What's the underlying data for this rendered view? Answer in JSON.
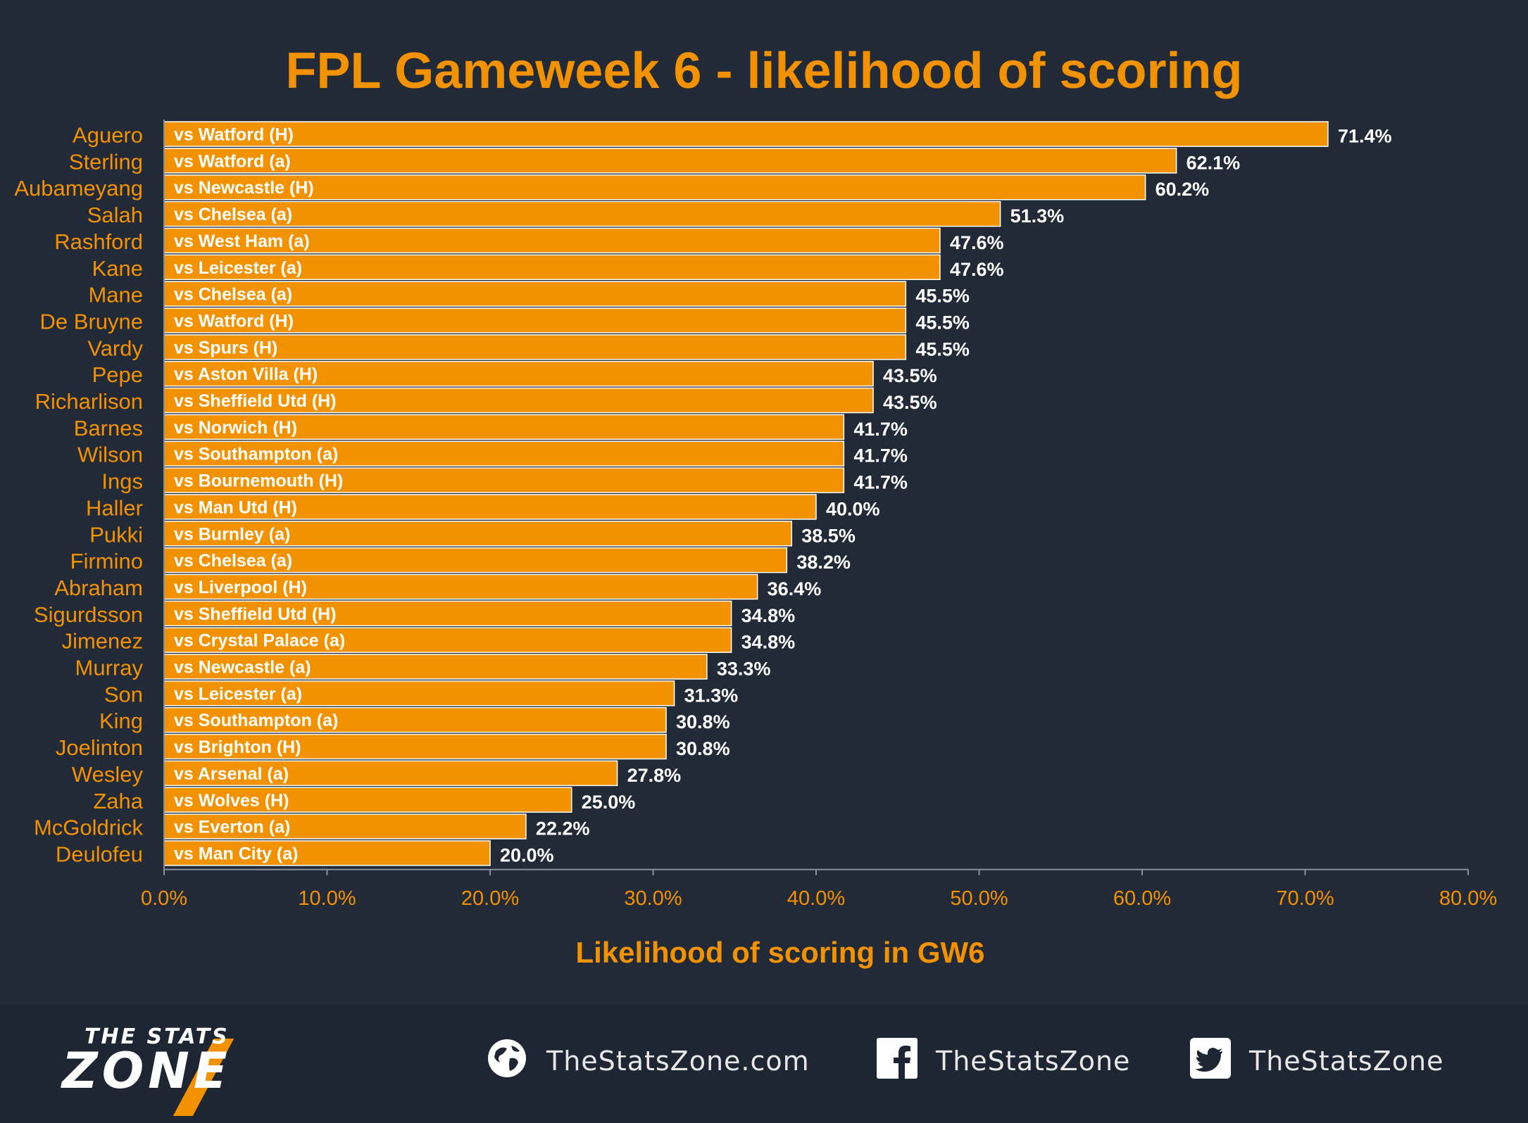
{
  "chart_data": {
    "type": "bar",
    "orientation": "horizontal",
    "title": "FPL Gameweek 6 - likelihood of scoring",
    "xlabel": "Likelihood of scoring in GW6",
    "ylabel": "",
    "xlim": [
      0,
      80
    ],
    "x_ticks": [
      "0.0%",
      "10.0%",
      "20.0%",
      "30.0%",
      "40.0%",
      "50.0%",
      "60.0%",
      "70.0%",
      "80.0%"
    ],
    "categories": [
      "Aguero",
      "Sterling",
      "Aubameyang",
      "Salah",
      "Rashford",
      "Kane",
      "Mane",
      "De Bruyne",
      "Vardy",
      "Pepe",
      "Richarlison",
      "Barnes",
      "Wilson",
      "Ings",
      "Haller",
      "Pukki",
      "Firmino",
      "Abraham",
      "Sigurdsson",
      "Jimenez",
      "Murray",
      "Son",
      "King",
      "Joelinton",
      "Wesley",
      "Zaha",
      "McGoldrick",
      "Deulofeu"
    ],
    "fixtures": [
      "vs Watford (H)",
      "vs Watford (a)",
      "vs Newcastle (H)",
      "vs Chelsea (a)",
      "vs West Ham (a)",
      "vs Leicester (a)",
      "vs Chelsea (a)",
      "vs Watford (H)",
      "vs Spurs (H)",
      "vs Aston Villa (H)",
      "vs Sheffield Utd (H)",
      "vs Norwich (H)",
      "vs Southampton (a)",
      "vs Bournemouth (H)",
      "vs Man Utd (H)",
      "vs Burnley (a)",
      "vs Chelsea (a)",
      "vs Liverpool (H)",
      "vs Sheffield Utd (H)",
      "vs Crystal Palace (a)",
      "vs Newcastle (a)",
      "vs Leicester (a)",
      "vs Southampton (a)",
      "vs Brighton (H)",
      "vs Arsenal (a)",
      "vs Wolves (H)",
      "vs Everton (a)",
      "vs Man City (a)"
    ],
    "values": [
      71.4,
      62.1,
      60.2,
      51.3,
      47.6,
      47.6,
      45.5,
      45.5,
      45.5,
      43.5,
      43.5,
      41.7,
      41.7,
      41.7,
      40.0,
      38.5,
      38.2,
      36.4,
      34.8,
      34.8,
      33.3,
      31.3,
      30.8,
      30.8,
      27.8,
      25.0,
      22.2,
      20.0
    ],
    "value_labels": [
      "71.4%",
      "62.1%",
      "60.2%",
      "51.3%",
      "47.6%",
      "47.6%",
      "45.5%",
      "45.5%",
      "45.5%",
      "43.5%",
      "43.5%",
      "41.7%",
      "41.7%",
      "41.7%",
      "40.0%",
      "38.5%",
      "38.2%",
      "36.4%",
      "34.8%",
      "34.8%",
      "33.3%",
      "31.3%",
      "30.8%",
      "30.8%",
      "27.8%",
      "25.0%",
      "22.2%",
      "20.0%"
    ],
    "grid": false,
    "legend": "none"
  },
  "colors": {
    "background": "#222a38",
    "bar": "#f39200",
    "bar_edge": "#ffffff",
    "accent_text": "#f39200",
    "value_text": "#ffffff",
    "fixture_text": "#ffffff"
  },
  "footer": {
    "logo_top": "THE STATS",
    "logo_main": "ZONE",
    "website": "TheStatsZone.com",
    "website_icon": "globe-icon",
    "facebook": "TheStatsZone",
    "facebook_icon": "facebook-icon",
    "twitter": "TheStatsZone",
    "twitter_icon": "twitter-icon"
  }
}
